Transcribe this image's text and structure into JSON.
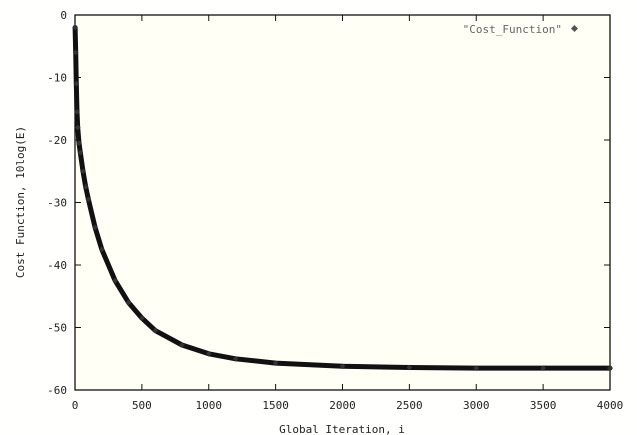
{
  "chart_data": {
    "type": "line",
    "title": "",
    "xlabel": "Global Iteration, i",
    "ylabel": "Cost Function, 10log(E)",
    "xlim": [
      0,
      4000
    ],
    "ylim": [
      -60,
      0
    ],
    "grid": false,
    "legend_position": "top-right",
    "xticks": [
      0,
      500,
      1000,
      1500,
      2000,
      2500,
      3000,
      3500,
      4000
    ],
    "yticks": [
      0,
      -10,
      -20,
      -30,
      -40,
      -50,
      -60
    ],
    "series": [
      {
        "name": "\"Cost_Function\"",
        "marker": "diamond",
        "x": [
          1,
          5,
          10,
          15,
          20,
          30,
          40,
          60,
          80,
          100,
          150,
          200,
          300,
          400,
          500,
          600,
          800,
          1000,
          1200,
          1500,
          2000,
          2500,
          3000,
          3500,
          4000
        ],
        "y": [
          -2,
          -6,
          -11,
          -15.5,
          -18,
          -20.5,
          -22,
          -25,
          -27.5,
          -29.5,
          -34,
          -37.5,
          -42.5,
          -46,
          -48.5,
          -50.5,
          -52.8,
          -54.2,
          -55,
          -55.7,
          -56.2,
          -56.4,
          -56.5,
          -56.5,
          -56.5
        ]
      }
    ]
  },
  "colors": {
    "background": "#fffff6",
    "line": "#111111",
    "legend_text": "#666666"
  }
}
